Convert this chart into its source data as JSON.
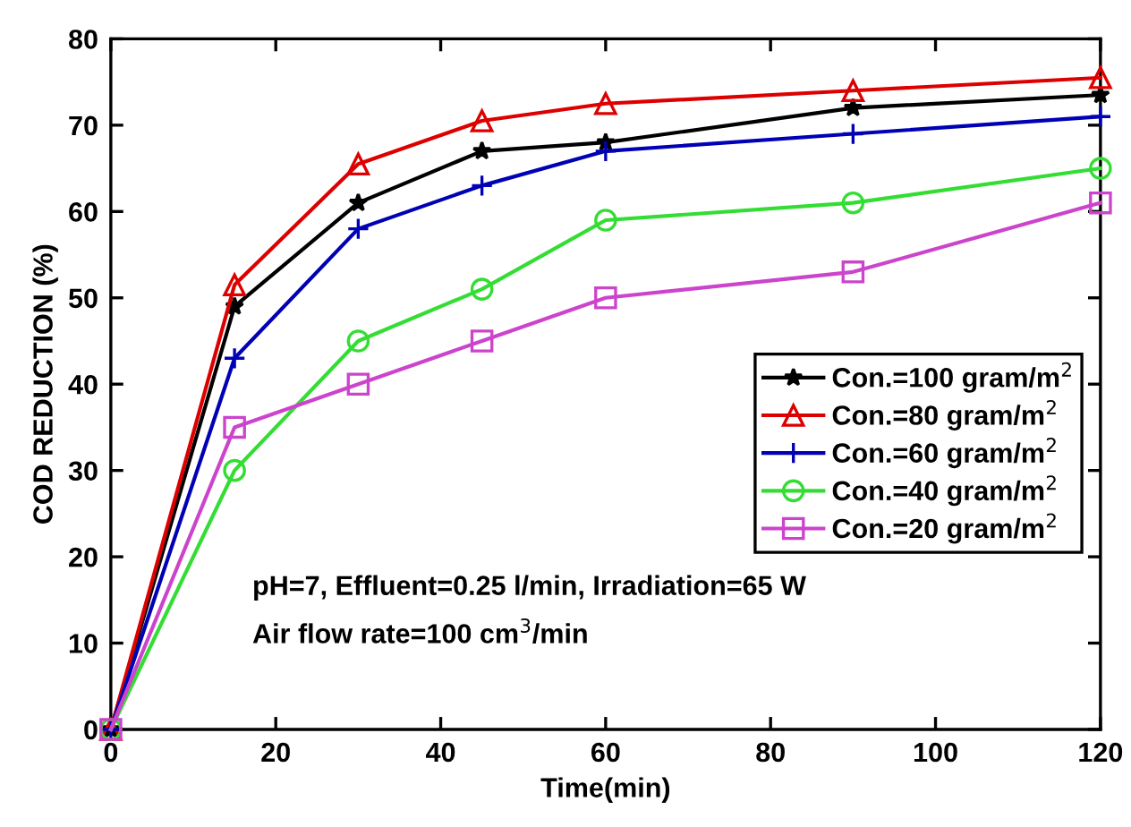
{
  "chart_data": {
    "type": "line",
    "xlabel": "Time(min)",
    "ylabel": "COD REDUCTION (%)",
    "x": [
      0,
      15,
      30,
      45,
      60,
      90,
      120
    ],
    "series": [
      {
        "name": "Con.=100 gram/m$^{2}$",
        "color": "#000000",
        "marker": "star",
        "values": [
          0,
          49,
          61,
          67,
          68,
          72,
          73.5
        ]
      },
      {
        "name": "Con.=80 gram/m$^{2}$",
        "color": "#dd0000",
        "marker": "triangle",
        "values": [
          0,
          51.5,
          65.5,
          70.5,
          72.5,
          74,
          75.5
        ]
      },
      {
        "name": "Con.=60 gram/m$^{2}$",
        "color": "#0000b4",
        "marker": "cross",
        "values": [
          0,
          43,
          58,
          63,
          67,
          69,
          71
        ]
      },
      {
        "name": "Con.=40 gram/m$^{2}$",
        "color": "#33dd33",
        "marker": "circle",
        "values": [
          0,
          30,
          45,
          51,
          59,
          61,
          65
        ]
      },
      {
        "name": "Con.=20 gram/m$^{2}$",
        "color": "#cc44cc",
        "marker": "square",
        "values": [
          0,
          35,
          40,
          45,
          50,
          53,
          61
        ]
      }
    ],
    "xlim": [
      0,
      120
    ],
    "xticks": [
      0,
      20,
      40,
      60,
      80,
      100,
      120
    ],
    "ylim": [
      0,
      80
    ],
    "yticks": [
      0,
      10,
      20,
      30,
      40,
      50,
      60,
      70,
      80
    ],
    "grid": false,
    "legend": "right",
    "line_style": "solid",
    "annotations": [
      "pH=7, Effluent=0.25 l/min, Irradiation=65 W",
      "Air flow rate=100 cm$^{3}$/min"
    ]
  }
}
